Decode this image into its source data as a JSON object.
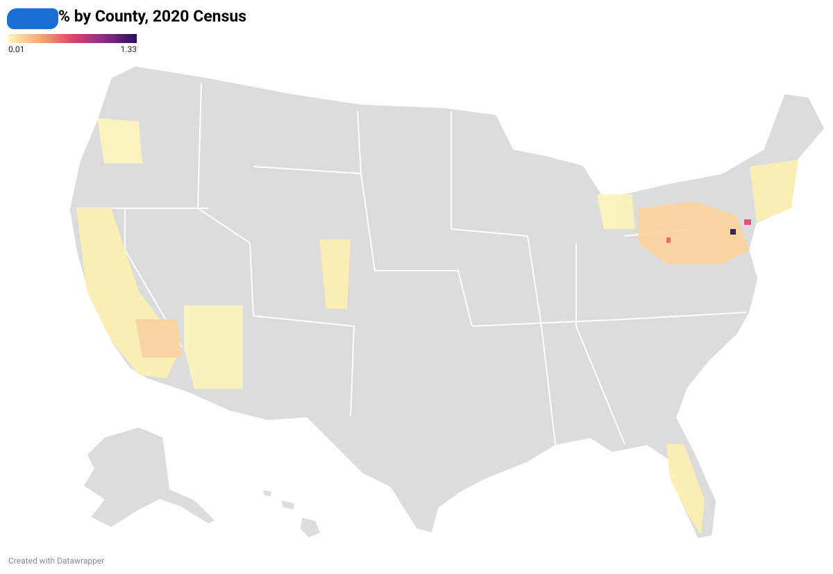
{
  "header": {
    "title": "% by County, 2020 Census"
  },
  "legend": {
    "min": 0.01,
    "max": 1.33,
    "colors": [
      "#fdf5b9",
      "#f9a772",
      "#d8476b",
      "#8c2a8c",
      "#2b0f5c"
    ]
  },
  "footer": {
    "credit": "Created with Datawrapper"
  }
}
